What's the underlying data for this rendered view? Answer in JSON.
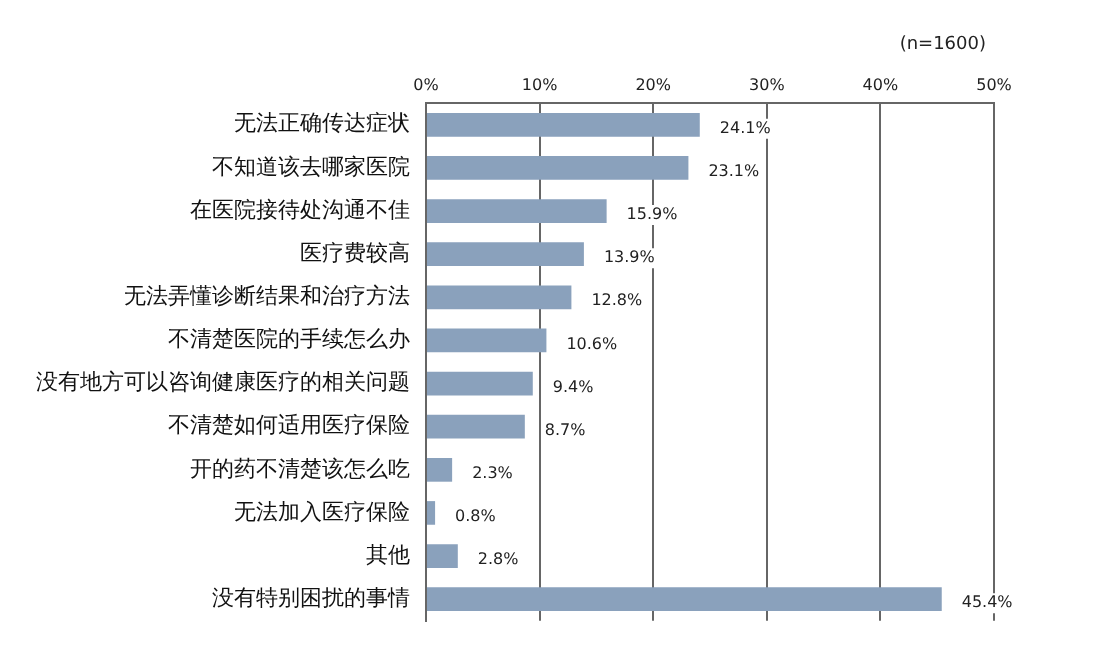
{
  "chart_data": {
    "type": "bar",
    "orientation": "horizontal",
    "categories": [
      "无法正确传达症状",
      "不知道该去哪家医院",
      "在医院接待处沟通不佳",
      "医疗费较高",
      "无法弄懂诊断结果和治疗方法",
      "不清楚医院的手续怎么办",
      "没有地方可以咨询健康医疗的相关问题",
      "不清楚如何适用医疗保险",
      "开的药不清楚该怎么吃",
      "无法加入医疗保险",
      "其他",
      "没有特别困扰的事情"
    ],
    "values": [
      24.1,
      23.1,
      15.9,
      13.9,
      12.8,
      10.6,
      9.4,
      8.7,
      2.3,
      0.8,
      2.8,
      45.4
    ],
    "value_labels": [
      "24.1%",
      "23.1%",
      "15.9%",
      "13.9%",
      "12.8%",
      "10.6%",
      "9.4%",
      "8.7%",
      "2.3%",
      "0.8%",
      "2.8%",
      "45.4%"
    ],
    "color": "#8aa1bc",
    "xlim": [
      0,
      50
    ],
    "xticks": [
      {
        "value": 0,
        "label": "0%"
      },
      {
        "value": 10,
        "label": "10%"
      },
      {
        "value": 20,
        "label": "20%"
      },
      {
        "value": 30,
        "label": "30%"
      },
      {
        "value": 40,
        "label": "40%"
      },
      {
        "value": 50,
        "label": "50%"
      }
    ],
    "grid": "x",
    "legend": false,
    "annotations": [
      "(n=1600)"
    ]
  }
}
